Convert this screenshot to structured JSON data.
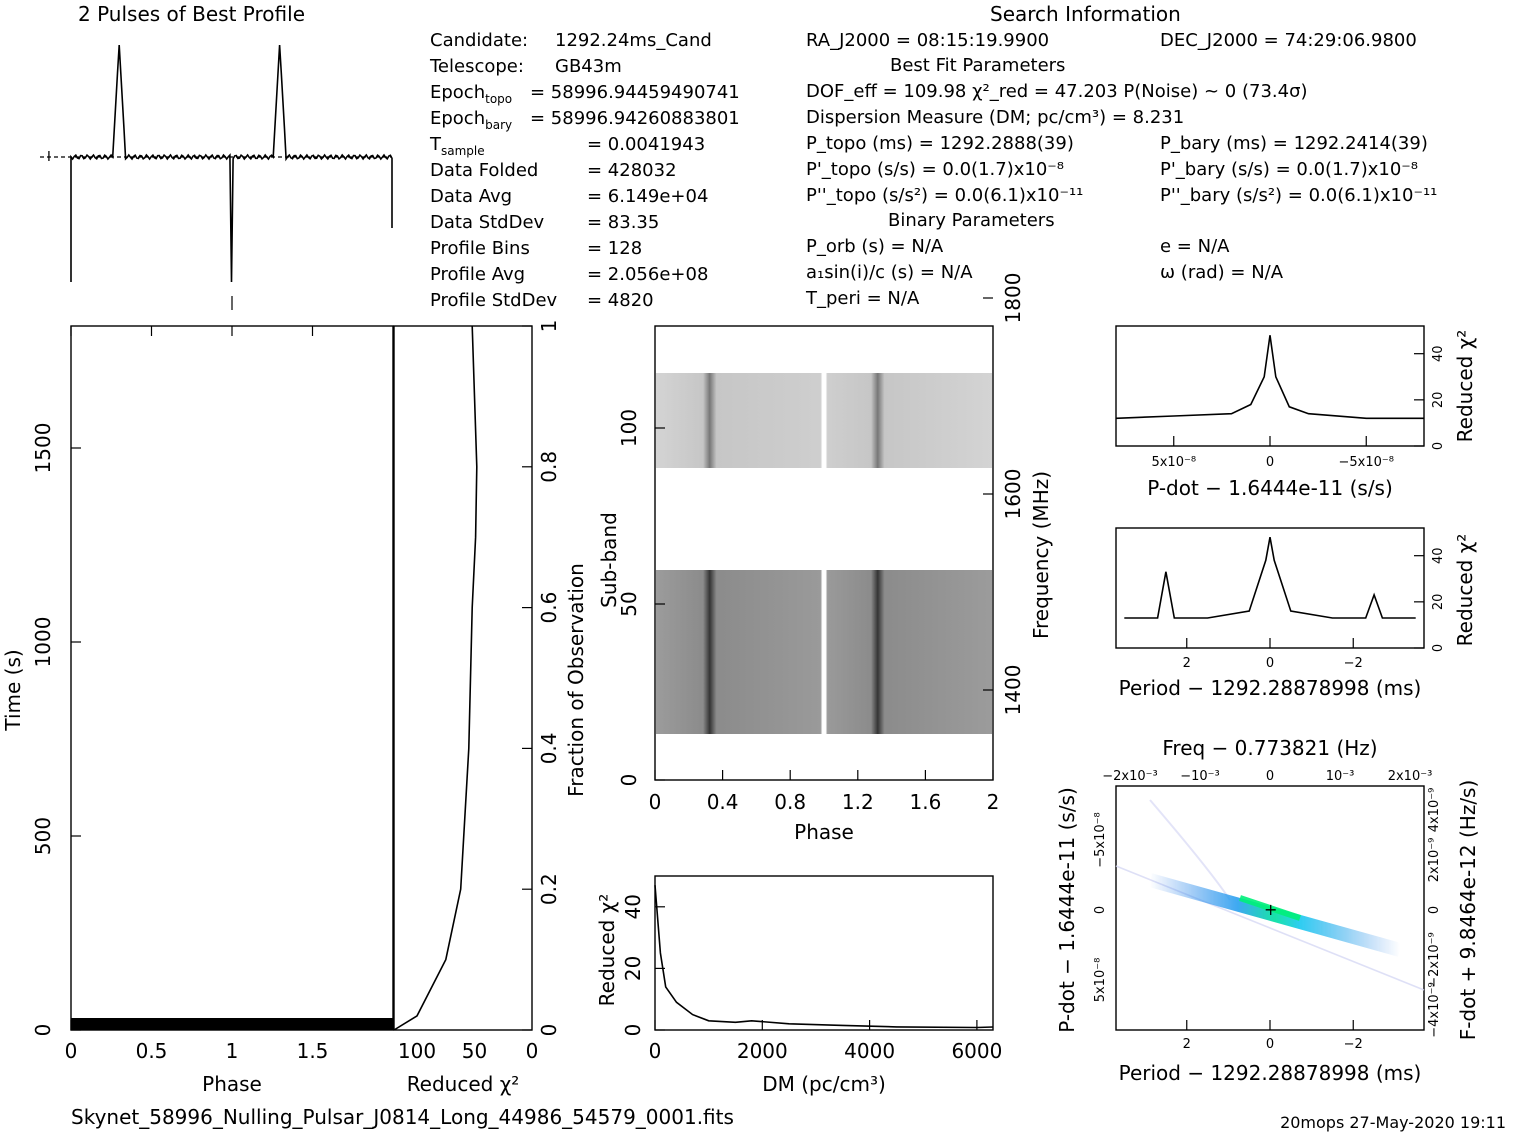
{
  "titles": {
    "profile_title": "2 Pulses of Best Profile",
    "search_title": "Search Information",
    "best_fit": "Best Fit Parameters",
    "binary": "Binary Parameters"
  },
  "info_left": [
    {
      "label": "Candidate:",
      "value": "1292.24ms_Cand"
    },
    {
      "label": "Telescope:",
      "value": "GB43m"
    },
    {
      "label": "Epoch",
      "sub": "topo",
      "value": "= 58996.94459490741"
    },
    {
      "label": "Epoch",
      "sub": "bary",
      "value": "= 58996.94260883801"
    },
    {
      "label": "T",
      "sub": "sample",
      "value": "=   0.0041943"
    },
    {
      "label": "Data Folded",
      "value": "=   428032"
    },
    {
      "label": "Data Avg",
      "value": "=   6.149e+04"
    },
    {
      "label": "Data StdDev",
      "value": "=   83.35"
    },
    {
      "label": "Profile Bins",
      "value": "=   128"
    },
    {
      "label": "Profile Avg",
      "value": "=   2.056e+08"
    },
    {
      "label": "Profile StdDev",
      "value": "=   4820"
    }
  ],
  "info_mid": [
    "RA_J2000 = 08:15:19.9900",
    "DOF_eff = 109.98   χ²_red = 47.203   P(Noise) ~ 0   (73.4σ)",
    "Dispersion Measure (DM; pc/cm³) = 8.231",
    "P_topo (ms) =  1292.2888(39)",
    "P'_topo (s/s) = 0.0(1.7)x10⁻⁸",
    "P''_topo (s/s²) = 0.0(6.1)x10⁻¹¹",
    "P_orb (s) = N/A",
    "a₁sin(i)/c (s) = N/A",
    "T_peri = N/A"
  ],
  "info_right": [
    "DEC_J2000 = 74:29:06.9800",
    "P_bary (ms) =  1292.2414(39)",
    "P'_bary (s/s) = 0.0(1.7)x10⁻⁸",
    "P''_bary (s/s²) = 0.0(6.1)x10⁻¹¹",
    "e = N/A",
    "ω (rad) = N/A"
  ],
  "labels": {
    "time_ylabel": "Time (s)",
    "phase_xlabel": "Phase",
    "redchi_xlabel": "Reduced χ²",
    "frac_obs": "Fraction of Observation",
    "subband": "Sub-band",
    "frequency": "Frequency (MHz)",
    "dm_xlabel": "DM (pc/cm³)",
    "redchi_ylabel": "Reduced χ²",
    "pdot_xlabel": "P-dot − 1.6444e-11 (s/s)",
    "period_xlabel": "Period − 1292.28878998 (ms)",
    "freq_top": "Freq − 0.773821 (Hz)",
    "pdot_ylabel": "P-dot − 1.6444e-11 (s/s)",
    "fdot_ylabel": "F-dot + 9.8464e-12 (Hz/s)",
    "period_xlabel2": "Period − 1292.28878998 (ms)"
  },
  "footer": {
    "filename": "Skynet_58996_Nulling_Pulsar_J0814_Long_44986_54579_0001.fits",
    "stamp": "20mops 27-May-2020 19:11"
  },
  "ticks": {
    "time_y": [
      "0",
      "500",
      "1000",
      "1500"
    ],
    "phase_x": [
      "0",
      "0.5",
      "1",
      "1.5"
    ],
    "redchi_x": [
      "100",
      "50",
      "0"
    ],
    "frac_y": [
      "0",
      "0.2",
      "0.4",
      "0.6",
      "0.8",
      "1"
    ],
    "subband_y": [
      "0",
      "50",
      "100"
    ],
    "freq_y": [
      "1400",
      "1600",
      "1800"
    ],
    "phase2_x": [
      "0",
      "0.4",
      "0.8",
      "1.2",
      "1.6",
      "2"
    ],
    "dm_x": [
      "0",
      "2000",
      "4000",
      "6000"
    ],
    "dmchi_y": [
      "0",
      "20",
      "40"
    ],
    "pdot_x": [
      "5x10⁻⁸",
      "0",
      "−5x10⁻⁸"
    ],
    "pdchi_y": [
      "0",
      "20",
      "40"
    ],
    "per_x": [
      "2",
      "0",
      "−2"
    ],
    "perchi_y": [
      "0",
      "20",
      "40"
    ],
    "freq_x": [
      "−2x10⁻³",
      "−10⁻³",
      "0",
      "10⁻³",
      "2x10⁻³"
    ],
    "pdot_y": [
      "−5x10⁻⁸",
      "0",
      "5x10⁻⁸"
    ],
    "fdot_y": [
      "−4x10⁻⁹",
      "−2x10⁻⁹",
      "0",
      "2x10⁻⁹",
      "4x10⁻⁹"
    ],
    "per2_x": [
      "2",
      "0",
      "−2"
    ]
  },
  "chart_data": [
    {
      "type": "line",
      "name": "profile",
      "x": [
        0,
        0.25,
        0.3,
        0.35,
        0.5,
        0.75,
        1.0,
        1.25,
        1.3,
        1.35,
        1.5,
        1.75,
        2.0
      ],
      "y": [
        0,
        0,
        1,
        0,
        0,
        0,
        -0.6,
        0,
        1,
        0,
        0,
        0,
        0
      ]
    },
    {
      "type": "line",
      "name": "redchi_vs_time",
      "y_frac": [
        0,
        0.02,
        0.1,
        0.2,
        0.4,
        0.6,
        0.7,
        0.8,
        0.9,
        1.0
      ],
      "x": [
        120,
        100,
        75,
        62,
        55,
        52,
        49,
        48,
        50,
        52
      ]
    },
    {
      "type": "line",
      "name": "dm_curve",
      "x": [
        0,
        100,
        200,
        400,
        700,
        1000,
        1500,
        1800,
        2500,
        3500,
        4500,
        6000
      ],
      "y": [
        47,
        25,
        14,
        9,
        5,
        3,
        2.5,
        3,
        2,
        1.5,
        1,
        0.8
      ]
    },
    {
      "type": "line",
      "name": "pdot_curve",
      "x": [
        -8,
        -5,
        -2,
        -1,
        -0.3,
        0,
        0.3,
        1,
        2,
        5,
        8
      ],
      "y": [
        12,
        12,
        14,
        17,
        30,
        48,
        30,
        18,
        14,
        13,
        12
      ]
    },
    {
      "type": "line",
      "name": "period_curve",
      "x": [
        3.5,
        2.7,
        2.5,
        2.3,
        1.5,
        0.5,
        0.1,
        0,
        -0.1,
        -0.5,
        -1.5,
        -2.3,
        -2.5,
        -2.7,
        -3.5
      ],
      "y": [
        13,
        13,
        33,
        13,
        13,
        16,
        38,
        48,
        38,
        16,
        13,
        13,
        23,
        13,
        13
      ]
    }
  ]
}
